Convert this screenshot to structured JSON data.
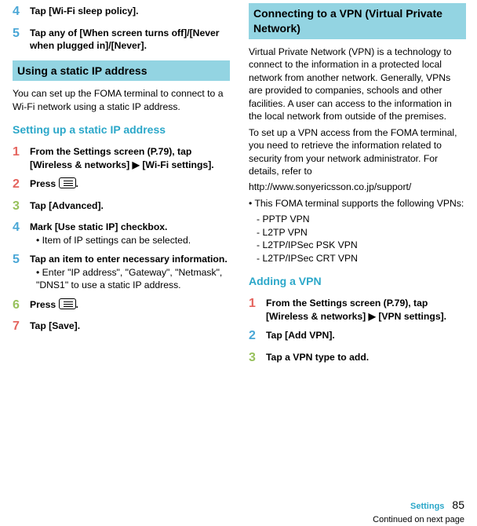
{
  "left": {
    "step4": {
      "num": "4",
      "text": "Tap [Wi-Fi sleep policy]."
    },
    "step5": {
      "num": "5",
      "text": "Tap any of [When screen turns off]/[Never when plugged in]/[Never]."
    },
    "h_static": "Using a static IP address",
    "p_static": "You can set up the FOMA terminal to connect to a Wi-Fi network using a static IP address.",
    "h_setup": "Setting up a static IP address",
    "s1": {
      "num": "1",
      "a": "From the Settings screen (P.79), tap [Wireless & networks] ",
      "arrow": "▶",
      "b": " [Wi-Fi settings]."
    },
    "s2": {
      "num": "2",
      "a": "Press ",
      "b": "."
    },
    "s3": {
      "num": "3",
      "text": "Tap [Advanced]."
    },
    "s4": {
      "num": "4",
      "text": "Mark [Use static IP] checkbox.",
      "note": "Item of IP settings can be selected."
    },
    "s5": {
      "num": "5",
      "text": "Tap an item to enter necessary information.",
      "note": "Enter \"IP address\", \"Gateway\", \"Netmask\", \"DNS1\" to use a static IP address."
    },
    "s6": {
      "num": "6",
      "a": "Press ",
      "b": "."
    },
    "s7": {
      "num": "7",
      "text": "Tap [Save]."
    }
  },
  "right": {
    "h_vpn": "Connecting to a VPN (Virtual Private Network)",
    "p1": "Virtual Private Network (VPN) is a technology to connect to the information in a protected local network from another network. Generally, VPNs are provided to companies, schools and other facilities. A user can access to the information in the local network from outside of the premises.",
    "p2": "To set up a VPN access from the FOMA terminal, you need to retrieve the information related to security from your network administrator. For details, refer to",
    "url": "http://www.sonyericsson.co.jp/support/",
    "bullet": "This FOMA terminal supports the following VPNs:",
    "vpn_types": [
      "PPTP VPN",
      "L2TP VPN",
      "L2TP/IPSec PSK VPN",
      "L2TP/IPSec CRT VPN"
    ],
    "h_add": "Adding a VPN",
    "a1": {
      "num": "1",
      "a": "From the Settings screen (P.79), tap [Wireless & networks] ",
      "arrow": "▶",
      "b": " [VPN settings]."
    },
    "a2": {
      "num": "2",
      "text": "Tap [Add VPN]."
    },
    "a3": {
      "num": "3",
      "text": "Tap a VPN type to add."
    }
  },
  "foot": {
    "section": "Settings",
    "page": "85",
    "continued": "Continued on next page"
  }
}
